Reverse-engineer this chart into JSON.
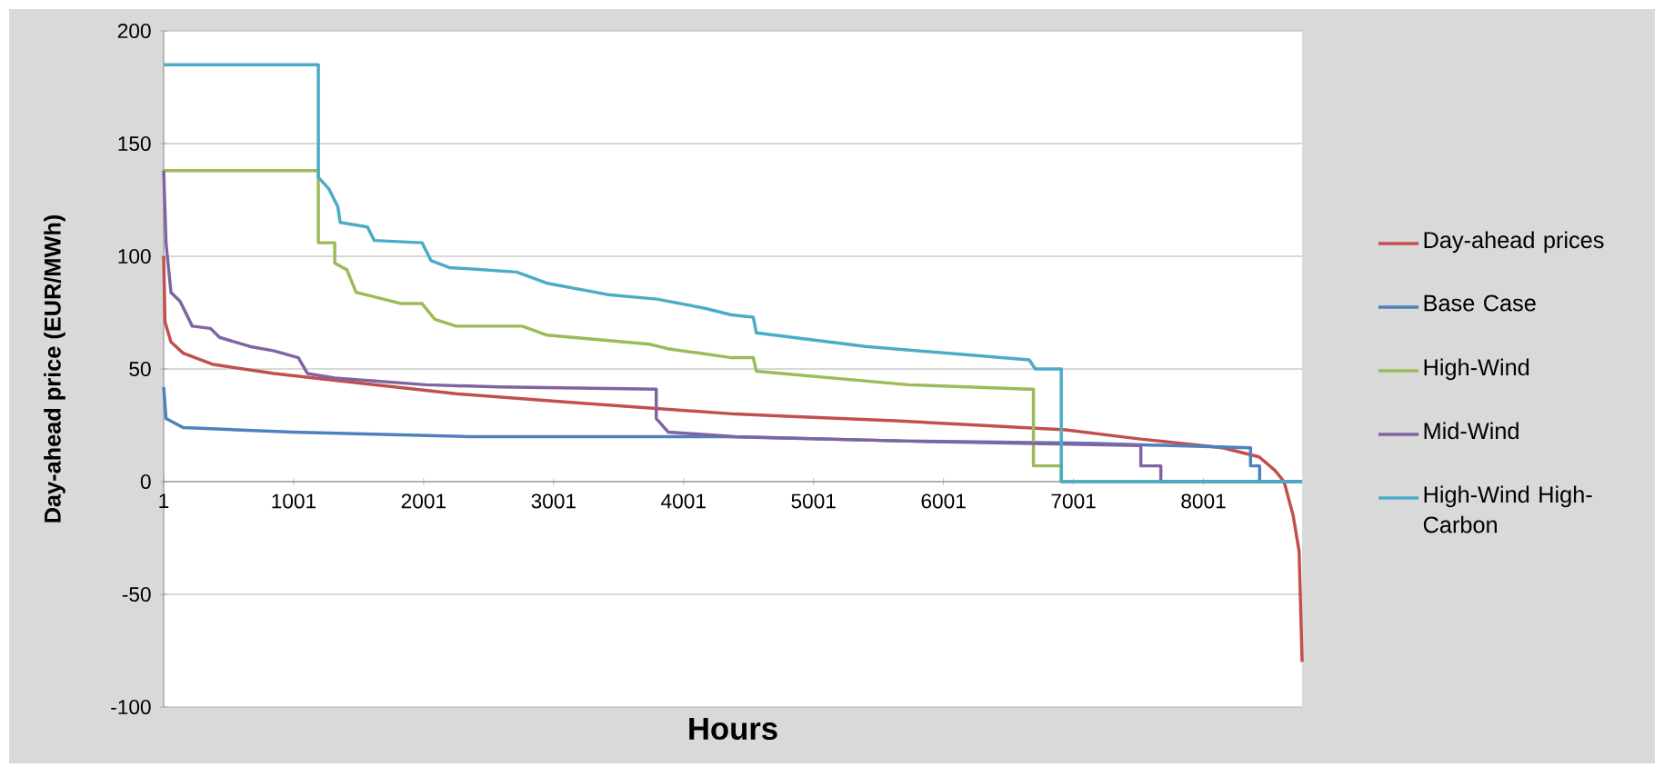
{
  "chart_data": {
    "type": "line",
    "xlabel": "Hours",
    "ylabel": "Day-ahead price (EUR/MWh)",
    "xlim": [
      1,
      8760
    ],
    "xticks": [
      1,
      1001,
      2001,
      3001,
      4001,
      5001,
      6001,
      7001,
      8001
    ],
    "ylim": [
      -100,
      200
    ],
    "yticks": [
      -100,
      -50,
      0,
      50,
      100,
      150,
      200
    ],
    "grid": "y",
    "legend": "right",
    "marker": "none",
    "line_style": "solid",
    "series": [
      {
        "name": "Day-ahead prices",
        "color": "#c0504d",
        "x": [
          1,
          11,
          57,
          151,
          383,
          851,
          1317,
          2251,
          3179,
          4397,
          4789,
          5629,
          6287,
          6941,
          7501,
          8149,
          8429,
          8551,
          8621,
          8691,
          8737,
          8760
        ],
        "values": [
          100,
          71,
          62,
          57,
          52,
          48,
          45,
          39,
          35,
          30,
          29,
          27,
          25,
          23,
          19,
          15,
          11,
          5,
          0,
          -15,
          -31,
          -80
        ]
      },
      {
        "name": "Base Case",
        "color": "#4f81bd",
        "x": [
          1,
          19,
          151,
          991,
          2339,
          4327,
          5727,
          7127,
          8363,
          8363,
          8433,
          8433,
          8760
        ],
        "values": [
          42,
          28,
          24,
          22,
          20,
          20,
          18,
          17,
          15,
          7,
          7,
          0,
          0
        ]
      },
      {
        "name": "High-Wind",
        "color": "#9bbb59",
        "x": [
          1,
          1191,
          1191,
          1317,
          1317,
          1411,
          1481,
          1691,
          1831,
          1989,
          2087,
          2251,
          2759,
          2951,
          3739,
          3879,
          4369,
          4537,
          4561,
          5727,
          6661,
          6693,
          6693,
          6907,
          6907,
          8760
        ],
        "values": [
          138,
          138,
          106,
          106,
          97,
          94,
          84,
          81,
          79,
          79,
          72,
          69,
          69,
          65,
          61,
          59,
          55,
          55,
          49,
          43,
          41,
          41,
          7,
          7,
          0,
          0
        ]
      },
      {
        "name": "Mid-Wind",
        "color": "#8064a2",
        "x": [
          1,
          19,
          57,
          127,
          221,
          361,
          431,
          663,
          851,
          1037,
          1107,
          1317,
          2017,
          2577,
          3791,
          3791,
          3883,
          4397,
          5727,
          7519,
          7519,
          7673,
          7673,
          8760
        ],
        "values": [
          138,
          106,
          84,
          80,
          69,
          68,
          64,
          60,
          58,
          55,
          48,
          46,
          43,
          42,
          41,
          28,
          22,
          20,
          18,
          16,
          7,
          7,
          0,
          0
        ]
      },
      {
        "name": "High-Wind High-Carbon",
        "color": "#4bacc6",
        "x": [
          1,
          1191,
          1191,
          1271,
          1341,
          1359,
          1569,
          1621,
          1989,
          2059,
          2199,
          2717,
          2955,
          3417,
          3795,
          4159,
          4369,
          4537,
          4561,
          5401,
          6661,
          6707,
          6907,
          6907,
          8760
        ],
        "values": [
          185,
          185,
          135,
          130,
          122,
          115,
          113,
          107,
          106,
          98,
          95,
          93,
          88,
          83,
          81,
          77,
          74,
          73,
          66,
          60,
          54,
          50,
          50,
          0,
          0
        ]
      }
    ]
  }
}
